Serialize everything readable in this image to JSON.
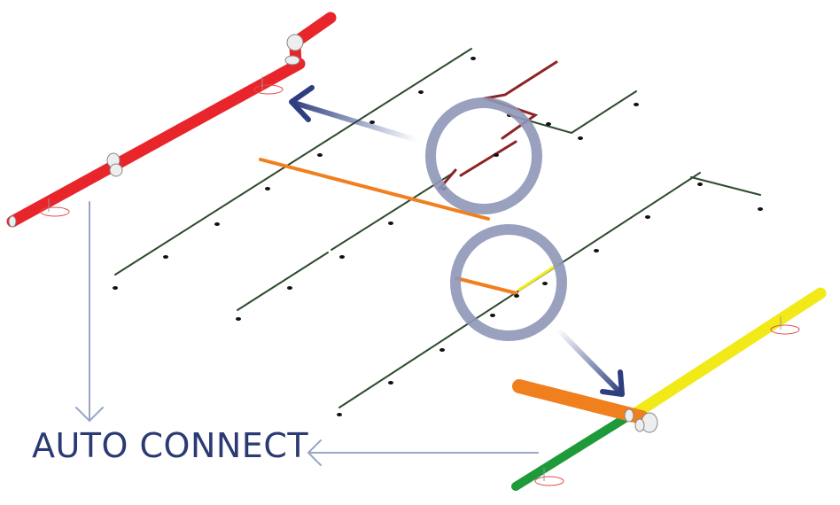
{
  "caption": {
    "text": "AUTO CONNECT"
  },
  "colors": {
    "caption": "#2b3a73",
    "arrow_dark": "#2f3e80",
    "arrow_light": "#9aa6c6",
    "focus_ring": "#8e97b8",
    "branch_line": "#2f4a2f",
    "red_pipe": "#e8252b",
    "orange_pipe": "#f07f1e",
    "yellow_pipe": "#f2ea18",
    "green_pipe": "#1f9a3a",
    "dark_red_pipe": "#8b2424",
    "fitting": "#eeeeee",
    "hanger": "#e05050"
  },
  "icons": {
    "arrows": [
      "curved-arrow-icon",
      "down-arrow-icon",
      "left-arrow-icon"
    ],
    "focus": "circle-highlight-icon"
  }
}
